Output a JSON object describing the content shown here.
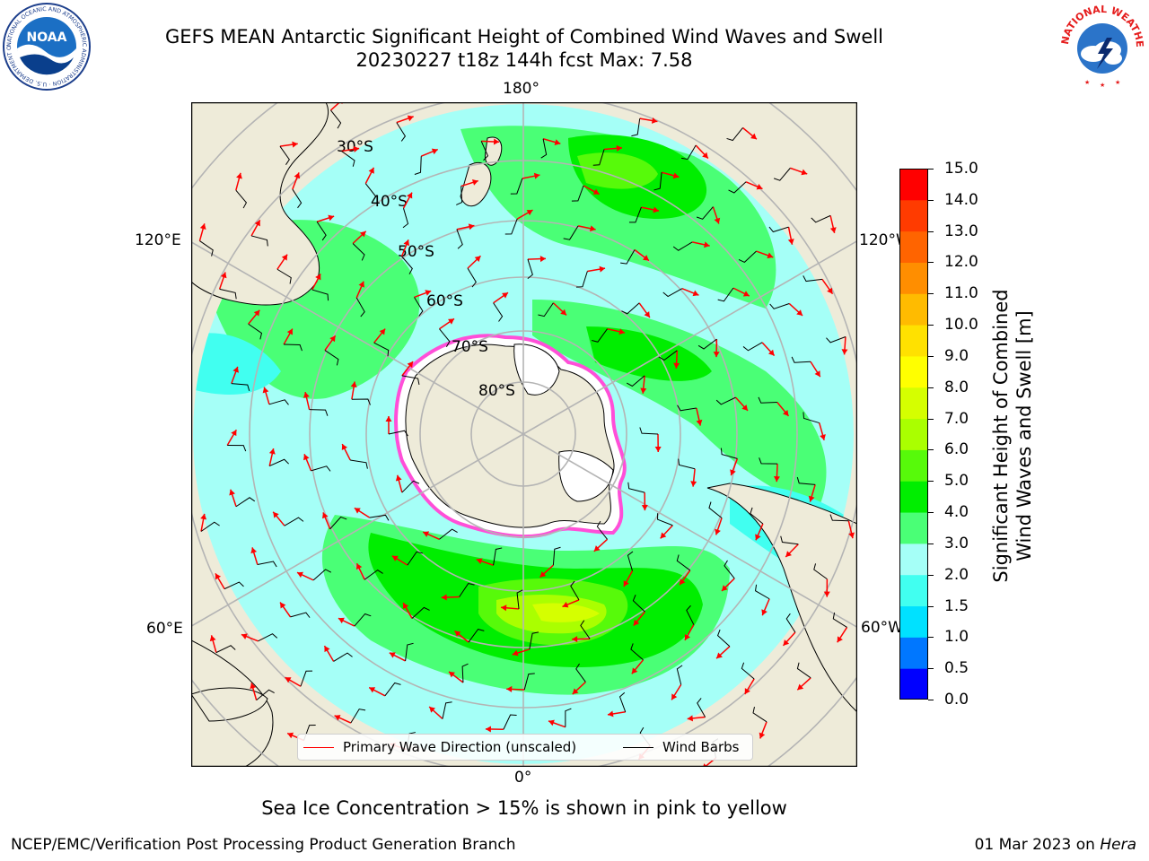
{
  "header": {
    "title_line1": "GEFS MEAN Antarctic Significant Height of Combined Wind Waves and Swell",
    "title_line2": "20230227 t18z 144h fcst   Max: 7.58"
  },
  "logos": {
    "noaa": {
      "text": "NOAA",
      "ring_text": "NATIONAL OCEANIC AND ATMOSPHERIC ADMINISTRATION · U.S. DEPARTMENT OF COMMERCE"
    },
    "nws": {
      "ring_text": "NATIONAL WEATHER SERVICE"
    }
  },
  "map": {
    "projection": "south-polar-stereographic",
    "longitude_labels": [
      "180°",
      "120°E",
      "120°W",
      "60°E",
      "60°W",
      "0°"
    ],
    "latitude_labels": [
      "30°S",
      "40°S",
      "50°S",
      "60°S",
      "70°S",
      "80°S"
    ],
    "colors": {
      "land": "#eeebd9",
      "ice": "#ff4fd8",
      "grid": "#b4b4b4",
      "arrow": "#ff0000",
      "barb": "#000000"
    }
  },
  "legend": {
    "primary_wave_label": "Primary Wave Direction (unscaled)",
    "wind_barbs_label": "Wind Barbs"
  },
  "colorbar": {
    "label_line1": "Significant Height of Combined",
    "label_line2": "Wind Waves and Swell [m]",
    "ticks": [
      "15.0",
      "14.0",
      "13.0",
      "12.0",
      "11.0",
      "10.0",
      "9.0",
      "8.0",
      "7.0",
      "6.0",
      "5.0",
      "4.0",
      "3.0",
      "2.0",
      "1.5",
      "1.0",
      "0.5",
      "0.0"
    ],
    "colors_bottom_to_top": [
      "#0000ff",
      "#0077ff",
      "#00e1ff",
      "#41fff0",
      "#a5fff7",
      "#4aff76",
      "#00ee00",
      "#57fa0a",
      "#aaff00",
      "#d5ff00",
      "#ffff00",
      "#ffe100",
      "#ffbb00",
      "#ff8e00",
      "#ff6400",
      "#ff3b00",
      "#ff0000"
    ]
  },
  "footer": {
    "sea_ice_note": "Sea Ice Concentration > 15% is shown in pink to yellow",
    "credit": "NCEP/EMC/Verification Post Processing Product Generation Branch",
    "date_text": "01 Mar 2023 on",
    "machine": "Hera"
  }
}
